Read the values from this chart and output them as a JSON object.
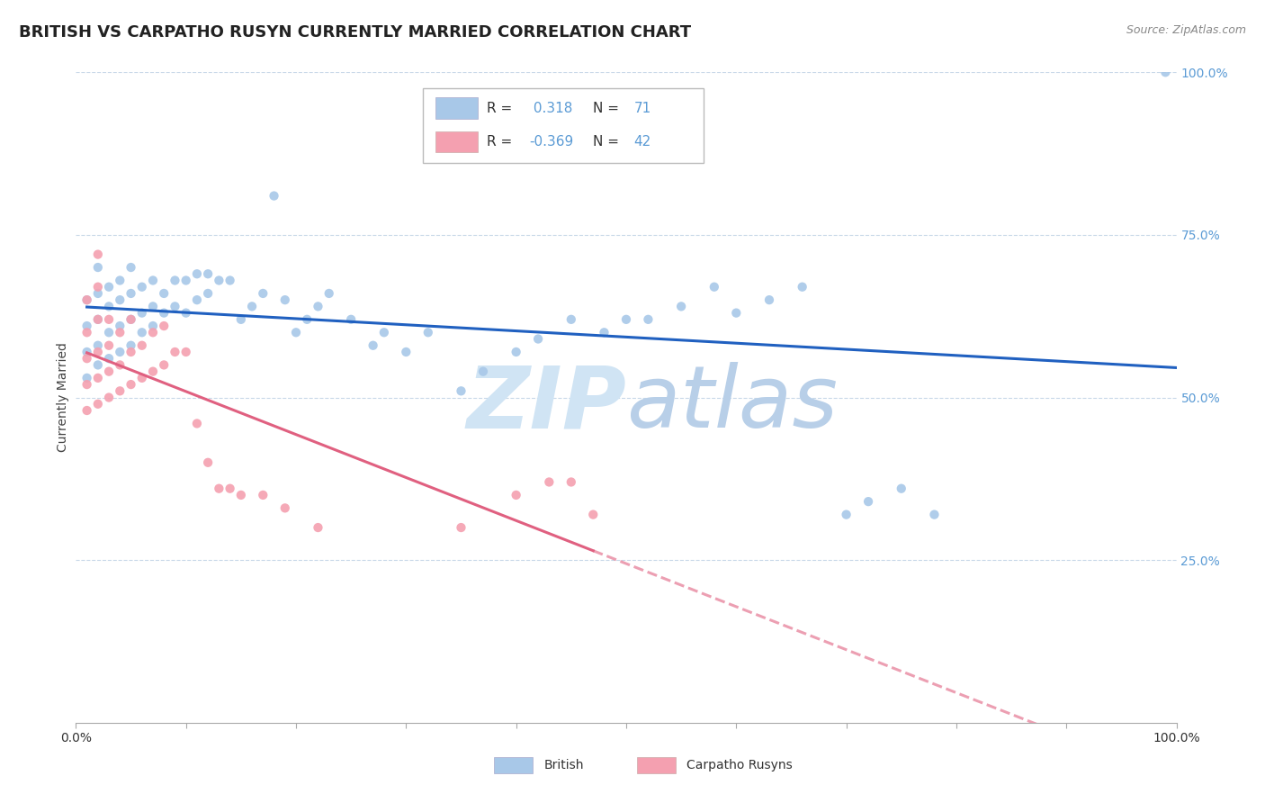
{
  "title": "BRITISH VS CARPATHO RUSYN CURRENTLY MARRIED CORRELATION CHART",
  "source": "Source: ZipAtlas.com",
  "ylabel": "Currently Married",
  "british_R": 0.318,
  "british_N": 71,
  "carpatho_R": -0.369,
  "carpatho_N": 42,
  "legend_labels": [
    "British",
    "Carpatho Rusyns"
  ],
  "british_color": "#a8c8e8",
  "carpatho_color": "#f4a0b0",
  "british_line_color": "#2060c0",
  "carpatho_line_color": "#e06080",
  "watermark_zip": "ZIP",
  "watermark_atlas": "atlas",
  "british_x": [
    0.01,
    0.01,
    0.01,
    0.01,
    0.02,
    0.02,
    0.02,
    0.02,
    0.02,
    0.03,
    0.03,
    0.03,
    0.03,
    0.04,
    0.04,
    0.04,
    0.04,
    0.05,
    0.05,
    0.05,
    0.05,
    0.06,
    0.06,
    0.06,
    0.07,
    0.07,
    0.07,
    0.08,
    0.08,
    0.09,
    0.09,
    0.1,
    0.1,
    0.11,
    0.11,
    0.12,
    0.12,
    0.13,
    0.14,
    0.15,
    0.16,
    0.17,
    0.18,
    0.19,
    0.2,
    0.21,
    0.22,
    0.23,
    0.25,
    0.27,
    0.28,
    0.3,
    0.32,
    0.35,
    0.37,
    0.4,
    0.42,
    0.45,
    0.48,
    0.5,
    0.52,
    0.55,
    0.58,
    0.6,
    0.63,
    0.66,
    0.7,
    0.72,
    0.75,
    0.78,
    0.99
  ],
  "british_y": [
    0.53,
    0.57,
    0.61,
    0.65,
    0.55,
    0.58,
    0.62,
    0.66,
    0.7,
    0.56,
    0.6,
    0.64,
    0.67,
    0.57,
    0.61,
    0.65,
    0.68,
    0.58,
    0.62,
    0.66,
    0.7,
    0.6,
    0.63,
    0.67,
    0.61,
    0.64,
    0.68,
    0.63,
    0.66,
    0.64,
    0.68,
    0.63,
    0.68,
    0.65,
    0.69,
    0.66,
    0.69,
    0.68,
    0.68,
    0.62,
    0.64,
    0.66,
    0.81,
    0.65,
    0.6,
    0.62,
    0.64,
    0.66,
    0.62,
    0.58,
    0.6,
    0.57,
    0.6,
    0.51,
    0.54,
    0.57,
    0.59,
    0.62,
    0.6,
    0.62,
    0.62,
    0.64,
    0.67,
    0.63,
    0.65,
    0.67,
    0.32,
    0.34,
    0.36,
    0.32,
    1.0
  ],
  "carpatho_x": [
    0.01,
    0.01,
    0.01,
    0.01,
    0.01,
    0.02,
    0.02,
    0.02,
    0.02,
    0.02,
    0.02,
    0.03,
    0.03,
    0.03,
    0.03,
    0.04,
    0.04,
    0.04,
    0.05,
    0.05,
    0.05,
    0.06,
    0.06,
    0.07,
    0.07,
    0.08,
    0.08,
    0.09,
    0.1,
    0.11,
    0.12,
    0.13,
    0.14,
    0.15,
    0.17,
    0.19,
    0.22,
    0.35,
    0.4,
    0.43,
    0.45,
    0.47
  ],
  "carpatho_y": [
    0.48,
    0.52,
    0.56,
    0.6,
    0.65,
    0.49,
    0.53,
    0.57,
    0.62,
    0.67,
    0.72,
    0.5,
    0.54,
    0.58,
    0.62,
    0.51,
    0.55,
    0.6,
    0.52,
    0.57,
    0.62,
    0.53,
    0.58,
    0.54,
    0.6,
    0.55,
    0.61,
    0.57,
    0.57,
    0.46,
    0.4,
    0.36,
    0.36,
    0.35,
    0.35,
    0.33,
    0.3,
    0.3,
    0.35,
    0.37,
    0.37,
    0.32
  ],
  "xlim": [
    0.0,
    1.0
  ],
  "ylim": [
    0.0,
    1.0
  ],
  "grid_color": "#c8d8e8",
  "background_color": "#ffffff",
  "right_axis_color": "#5b9bd5",
  "title_fontsize": 13,
  "axis_label_fontsize": 10,
  "tick_fontsize": 10
}
